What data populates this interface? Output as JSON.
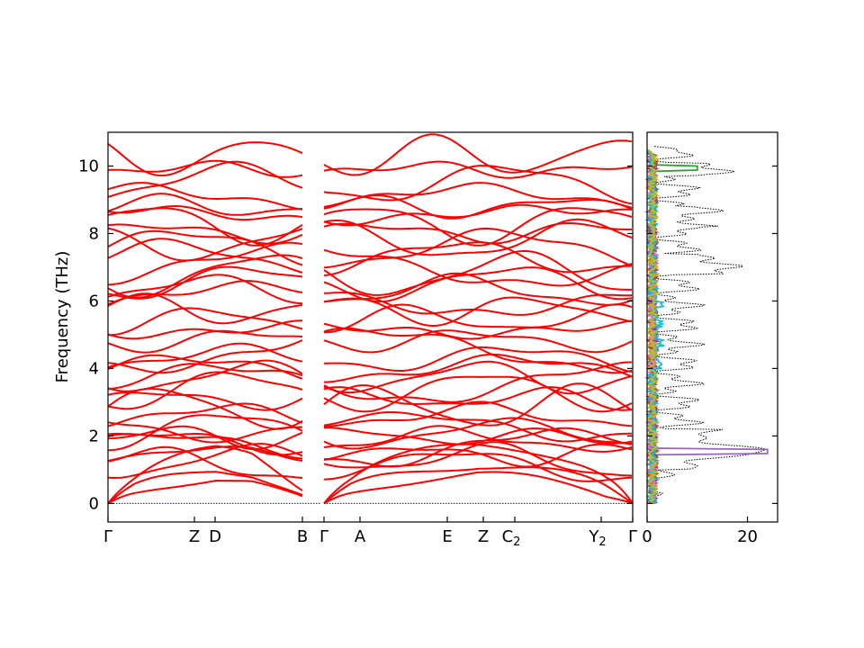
{
  "chart_data": [
    {
      "type": "line",
      "panel": "band structure",
      "ylabel": "Frequency (THz)",
      "ylim": [
        -0.55,
        11.0
      ],
      "yticks": [
        0,
        2,
        4,
        6,
        8,
        10
      ],
      "x_path_labels": [
        "Γ",
        "Z",
        "D",
        "B",
        "Γ",
        "A",
        "E",
        "Z",
        "C",
        "Y",
        "Γ"
      ],
      "x_label_subscripts": [
        "",
        "",
        "",
        "",
        "",
        "",
        "",
        "",
        "2",
        "2",
        ""
      ],
      "path_discontinuity_after": "B",
      "band_color": "#ff0000",
      "zero_line_color": "#0000ff",
      "gamma_zero_frequency_points": [
        "Γ",
        "Γ",
        "Γ"
      ],
      "approx_band_frequencies_at_gamma": [
        0,
        0,
        0,
        1.05,
        1.25,
        1.45,
        1.65,
        1.85,
        2.0,
        2.15,
        2.4,
        2.6,
        2.85,
        3.1,
        3.35,
        3.55,
        3.75,
        4.0,
        4.3,
        4.55,
        4.85,
        5.15,
        5.45,
        5.75,
        6.05,
        6.3,
        6.55,
        6.8,
        7.05,
        7.3,
        7.55,
        7.8,
        8.05,
        8.3,
        8.55,
        8.8,
        9.1,
        9.5,
        9.9,
        10.3
      ]
    },
    {
      "type": "line",
      "panel": "projected density of states",
      "ylim": [
        -0.55,
        11.0
      ],
      "xlim": [
        0,
        26
      ],
      "xticks": [
        0,
        20
      ],
      "total_dos_style": "dotted black",
      "projected_series_colors": [
        "#1f77b4",
        "#ff7f0e",
        "#2ca02c",
        "#d62728",
        "#9467bd",
        "#8c564b",
        "#e377c2",
        "#17becf",
        "#bcbd22"
      ],
      "peak_total_dos": {
        "frequency": 1.5,
        "value": 25
      },
      "peak_projected_dos": {
        "frequency": 1.55,
        "value": 24
      }
    }
  ]
}
